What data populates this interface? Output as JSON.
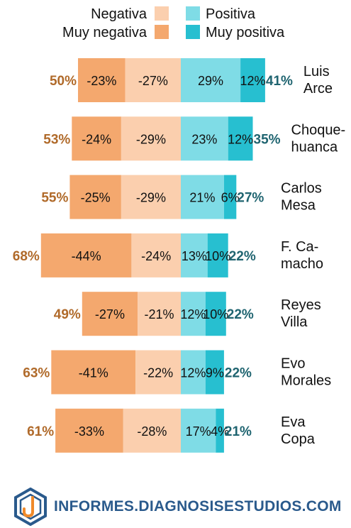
{
  "colors": {
    "muy_negativa": "#f4a86e",
    "negativa": "#fbcfae",
    "positiva": "#7fdce6",
    "muy_positiva": "#27bfd0",
    "neg_total_text": "#b06a2a",
    "pos_total_text": "#1f6470",
    "footer_text": "#2a5a8c",
    "logo_blue": "#2a5a8c",
    "logo_orange": "#f08a2a"
  },
  "chart_data": {
    "type": "bar",
    "orientation": "horizontal-diverging-stacked",
    "grid": false,
    "legend_position": "top",
    "legend": [
      {
        "key": "negativa",
        "label": "Negativa"
      },
      {
        "key": "muy_negativa",
        "label": "Muy negativa"
      },
      {
        "key": "positiva",
        "label": "Positiva"
      },
      {
        "key": "muy_positiva",
        "label": "Muy positiva"
      }
    ],
    "categories": [
      {
        "name_lines": [
          "Luis",
          "Arce"
        ],
        "muy_negativa": 23,
        "negativa": 27,
        "positiva": 29,
        "muy_positiva": 12,
        "neg_labels": [
          "-23%",
          "-27%"
        ],
        "pos_labels": [
          "29%",
          "12%"
        ],
        "neg_total": "50%",
        "pos_total": "41%"
      },
      {
        "name_lines": [
          "Choque-",
          "huanca"
        ],
        "muy_negativa": 24,
        "negativa": 29,
        "positiva": 23,
        "muy_positiva": 12,
        "neg_labels": [
          "-24%",
          "-29%"
        ],
        "pos_labels": [
          "23%",
          "12%"
        ],
        "neg_total": "53%",
        "pos_total": "35%"
      },
      {
        "name_lines": [
          "Carlos",
          "Mesa"
        ],
        "muy_negativa": 25,
        "negativa": 29,
        "positiva": 21,
        "muy_positiva": 6,
        "neg_labels": [
          "-25%",
          "-29%"
        ],
        "pos_labels": [
          "21%",
          "6%"
        ],
        "neg_total": "55%",
        "pos_total": "27%"
      },
      {
        "name_lines": [
          "F. Ca-",
          "macho"
        ],
        "muy_negativa": 44,
        "negativa": 24,
        "positiva": 13,
        "muy_positiva": 10,
        "neg_labels": [
          "-44%",
          "-24%"
        ],
        "pos_labels": [
          "13%",
          "10%"
        ],
        "neg_total": "68%",
        "pos_total": "22%"
      },
      {
        "name_lines": [
          "Reyes",
          "Villa"
        ],
        "muy_negativa": 27,
        "negativa": 21,
        "positiva": 12,
        "muy_positiva": 10,
        "neg_labels": [
          "-27%",
          "-21%"
        ],
        "pos_labels": [
          "12%",
          "10%"
        ],
        "neg_total": "49%",
        "pos_total": "22%"
      },
      {
        "name_lines": [
          "Evo",
          "Morales"
        ],
        "muy_negativa": 41,
        "negativa": 22,
        "positiva": 12,
        "muy_positiva": 9,
        "neg_labels": [
          "-41%",
          "-22%"
        ],
        "pos_labels": [
          "12%",
          "9%"
        ],
        "neg_total": "63%",
        "pos_total": "22%"
      },
      {
        "name_lines": [
          "Eva",
          "Copa"
        ],
        "muy_negativa": 33,
        "negativa": 28,
        "positiva": 17,
        "muy_positiva": 4,
        "neg_labels": [
          "-33%",
          "-28%"
        ],
        "pos_labels": [
          "17%",
          "4%"
        ],
        "neg_total": "61%",
        "pos_total": "21%"
      }
    ]
  },
  "footer": {
    "site": "INFORMES.DIAGNOSISESTUDIOS.COM"
  }
}
